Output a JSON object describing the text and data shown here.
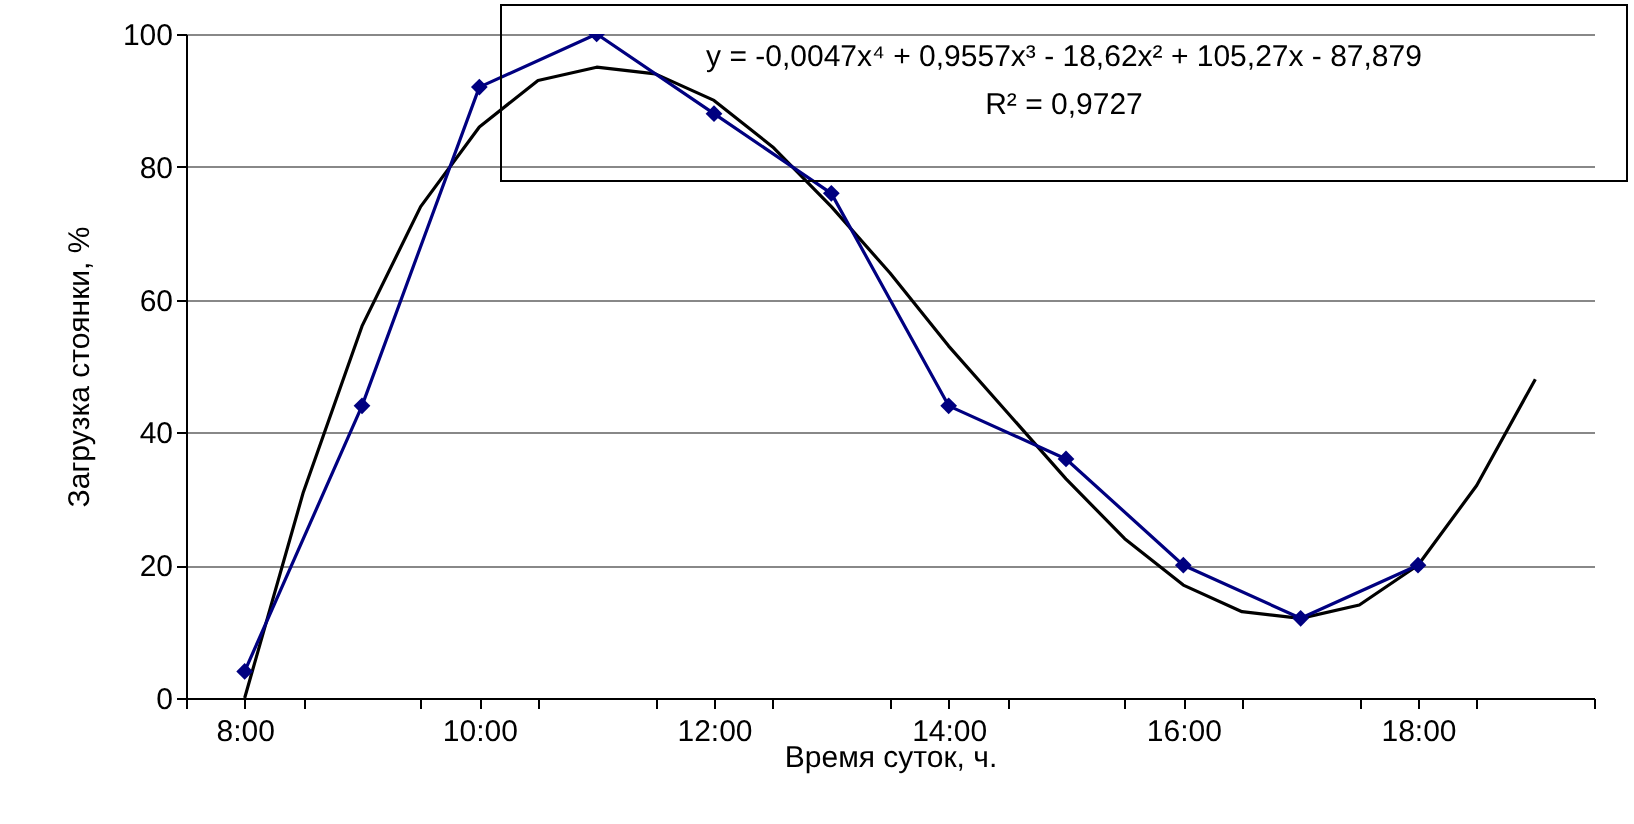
{
  "chart_data": {
    "type": "line",
    "xlabel": "Время суток, ч.",
    "ylabel": "Загрузка стоянки, %",
    "annotations": [
      "y = -0,0047x⁴ + 0,9557x³ - 18,62x² + 105,27x - 87,879",
      "R² = 0,9727"
    ],
    "xlim": [
      7.5,
      19.5
    ],
    "ylim": [
      0,
      100
    ],
    "xticks": [
      {
        "value": 7.5,
        "label": null
      },
      {
        "value": 8,
        "label": "8:00"
      },
      {
        "value": 8.5,
        "label": null
      },
      {
        "value": 9.5,
        "label": null
      },
      {
        "value": 10,
        "label": "10:00"
      },
      {
        "value": 10.5,
        "label": null
      },
      {
        "value": 11.5,
        "label": null
      },
      {
        "value": 12,
        "label": "12:00"
      },
      {
        "value": 12.5,
        "label": null
      },
      {
        "value": 13.5,
        "label": null
      },
      {
        "value": 14,
        "label": "14:00"
      },
      {
        "value": 14.5,
        "label": null
      },
      {
        "value": 15.5,
        "label": null
      },
      {
        "value": 16,
        "label": "16:00"
      },
      {
        "value": 16.5,
        "label": null
      },
      {
        "value": 17.5,
        "label": null
      },
      {
        "value": 18,
        "label": "18:00"
      },
      {
        "value": 18.5,
        "label": null
      },
      {
        "value": 19.5,
        "label": null
      }
    ],
    "yticks": [
      0,
      20,
      40,
      60,
      80,
      100
    ],
    "grid": "y",
    "series": [
      {
        "color": "#000000",
        "marker": "none",
        "x": [
          8,
          8.5,
          9,
          9.5,
          10,
          10.5,
          11,
          11.5,
          12,
          12.5,
          13,
          13.5,
          14,
          14.5,
          15,
          15.5,
          16,
          16.5,
          17,
          17.5,
          18,
          18.5,
          19
        ],
        "values": [
          0,
          31,
          56,
          74,
          86,
          93,
          95,
          94,
          90,
          83,
          74,
          64,
          53,
          43,
          33,
          24,
          17,
          13,
          12,
          14,
          20,
          32,
          48
        ]
      },
      {
        "color": "#000080",
        "marker": "diamond",
        "x": [
          8,
          9,
          10,
          11,
          12,
          13,
          14,
          15,
          16,
          17,
          18
        ],
        "values": [
          4,
          44,
          92,
          100,
          88,
          76,
          44,
          36,
          20,
          12,
          20
        ]
      }
    ]
  }
}
